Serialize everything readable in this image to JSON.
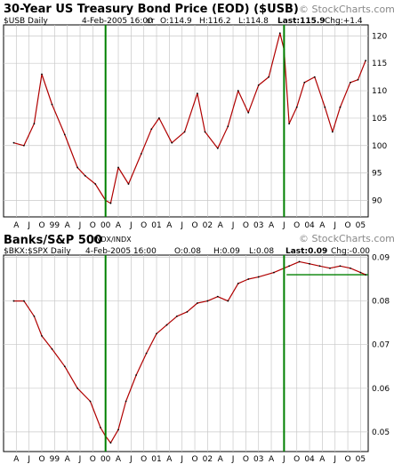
{
  "watermark": "© StockCharts.com",
  "colors": {
    "price_line": "#b00000",
    "price_dark": "#000000",
    "grid": "#c8c8c8",
    "marker_line": "#008000",
    "chg_top": "#008000",
    "chg_bottom": "#ff0000",
    "flat_line": "#008000"
  },
  "chart_data": [
    {
      "type": "line",
      "title": "30-Year US Treasury Bond Price (EOD) ($USB)",
      "symbol": "$USB Daily",
      "quote": {
        "date": "4-Feb-2005 16:00",
        "tz": "ET",
        "open": "O:114.9",
        "high": "H:116.2",
        "low": "L:114.8",
        "last": "Last:115.9",
        "chg": "Chg:+1.4"
      },
      "ylim": [
        87,
        122
      ],
      "yticks": [
        90,
        95,
        100,
        105,
        110,
        115,
        120
      ],
      "grid": true,
      "x": [
        1998.2,
        1998.4,
        1998.6,
        1998.75,
        1998.95,
        1999.2,
        1999.45,
        1999.6,
        1999.8,
        2000.0,
        2000.1,
        2000.25,
        2000.45,
        2000.7,
        2000.9,
        2001.05,
        2001.3,
        2001.55,
        2001.8,
        2001.95,
        2002.2,
        2002.4,
        2002.6,
        2002.8,
        2003.0,
        2003.2,
        2003.42,
        2003.5,
        2003.6,
        2003.75,
        2003.9,
        2004.1,
        2004.3,
        2004.45,
        2004.6,
        2004.8,
        2004.95,
        2005.1
      ],
      "values": [
        100.5,
        100,
        104,
        113,
        107.5,
        102,
        96,
        94.5,
        93,
        90,
        89.5,
        96,
        93,
        98.5,
        103,
        105,
        100.5,
        102.5,
        109.5,
        102.5,
        99.5,
        103.5,
        110,
        106,
        111,
        112.5,
        120.5,
        117.5,
        104,
        107,
        111.5,
        112.5,
        107,
        102.5,
        107,
        111.5,
        112,
        115.5
      ],
      "markers_x": [
        2000.0,
        2003.5
      ],
      "xticks": [
        "A",
        "J",
        "O",
        "99",
        "A",
        "J",
        "O",
        "00",
        "A",
        "J",
        "O",
        "01",
        "A",
        "J",
        "O",
        "02",
        "A",
        "J",
        "O",
        "03",
        "A",
        "J",
        "O",
        "04",
        "A",
        "J",
        "O",
        "05"
      ]
    },
    {
      "type": "line",
      "title": "Banks/S&P 500",
      "title_suffix": "INDX/INDX",
      "symbol": "$BKX:$SPX Daily",
      "quote": {
        "date": "4-Feb-2005 16:00",
        "open": "O:0.08",
        "high": "H:0.09",
        "low": "L:0.08",
        "last": "Last:0.09",
        "chg": "Chg:-0.00"
      },
      "ylim": [
        0.0455,
        0.0905
      ],
      "yticks": [
        0.05,
        0.06,
        0.07,
        0.08,
        0.09
      ],
      "ytick_labels": [
        "0.05",
        "0.06",
        "0.07",
        "0.08",
        "0.09"
      ],
      "grid": true,
      "x": [
        1998.2,
        1998.4,
        1998.6,
        1998.75,
        1998.95,
        1999.2,
        1999.45,
        1999.7,
        1999.9,
        2000.0,
        2000.1,
        2000.25,
        2000.4,
        2000.6,
        2000.8,
        2001.0,
        2001.2,
        2001.4,
        2001.6,
        2001.8,
        2002.0,
        2002.2,
        2002.4,
        2002.6,
        2002.8,
        2003.0,
        2003.3,
        2003.5,
        2003.6,
        2003.8,
        2004.0,
        2004.2,
        2004.4,
        2004.6,
        2004.8,
        2005.0,
        2005.1
      ],
      "values": [
        0.08,
        0.08,
        0.0765,
        0.072,
        0.069,
        0.065,
        0.06,
        0.057,
        0.051,
        0.049,
        0.0475,
        0.0505,
        0.057,
        0.063,
        0.068,
        0.0725,
        0.0745,
        0.0765,
        0.0775,
        0.0795,
        0.08,
        0.081,
        0.08,
        0.084,
        0.085,
        0.0855,
        0.0865,
        0.0875,
        0.088,
        0.089,
        0.0885,
        0.088,
        0.0875,
        0.088,
        0.0875,
        0.0865,
        0.086
      ],
      "markers_x": [
        2000.0,
        2003.5
      ],
      "flat_line": {
        "y": 0.086,
        "x_start": 2003.55
      },
      "xticks": [
        "A",
        "J",
        "O",
        "99",
        "A",
        "J",
        "O",
        "00",
        "A",
        "J",
        "O",
        "01",
        "A",
        "J",
        "O",
        "02",
        "A",
        "J",
        "O",
        "03",
        "A",
        "J",
        "O",
        "04",
        "A",
        "J",
        "O",
        "05"
      ]
    }
  ]
}
